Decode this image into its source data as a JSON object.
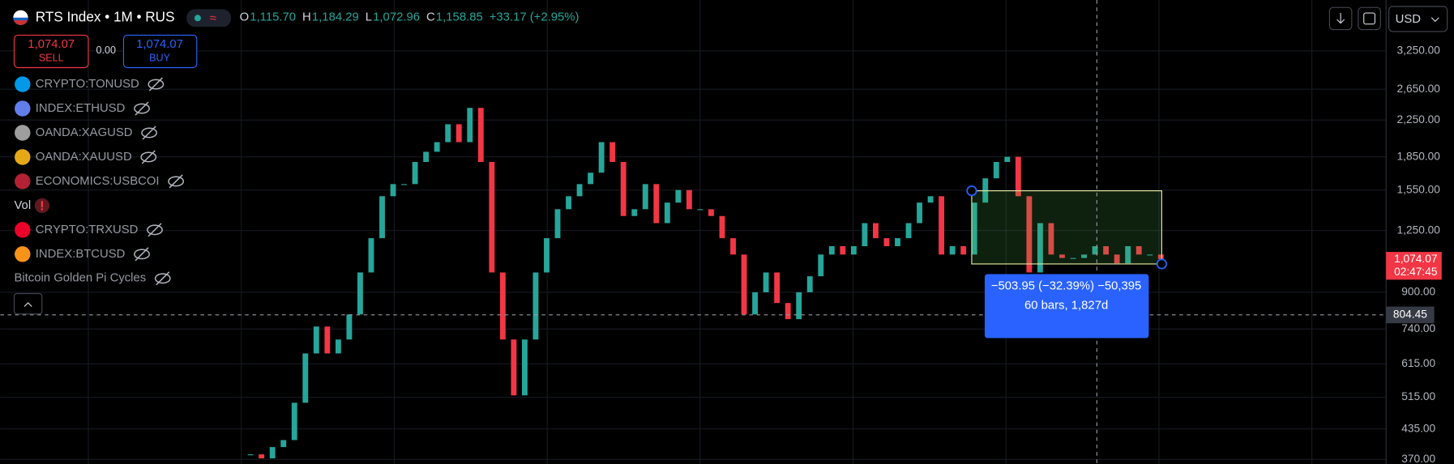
{
  "header": {
    "symbol": "RTS Index • 1M • RUS",
    "ohlc": [
      {
        "label": "O",
        "value": "1,115.70"
      },
      {
        "label": "H",
        "value": "1,184.29"
      },
      {
        "label": "L",
        "value": "1,072.96"
      },
      {
        "label": "C",
        "value": "1,158.85"
      }
    ],
    "change": "+33.17 (+2.95%)"
  },
  "trade": {
    "sell_price": "1,074.07",
    "sell": "SELL",
    "spread": "0.00",
    "buy_price": "1,074.07",
    "buy": "BUY"
  },
  "indicators": [
    "CRYPTO:TONUSD",
    "INDEX:ETHUSD",
    "OANDA:XAGUSD",
    "OANDA:XAUUSD",
    "ECONOMICS:USBCOI",
    "Vol",
    "CRYPTO:TRXUSD",
    "INDEX:BTCUSD",
    "Bitcoin Golden Pi Cycles"
  ],
  "currency": "USD",
  "chart_data": {
    "type": "candlestick",
    "values": [
      380,
      372,
      395,
      410,
      500,
      650,
      750,
      650,
      700,
      800,
      1000,
      1200,
      1500,
      1600,
      1600,
      1800,
      1900,
      2000,
      2200,
      2000,
      2400,
      1800,
      1000,
      700,
      520,
      700,
      1000,
      1200,
      1400,
      1500,
      1600,
      1700,
      2000,
      1800,
      1350,
      1400,
      1600,
      1300,
      1450,
      1550,
      1400,
      1400,
      1350,
      1200,
      1100,
      800,
      900,
      1000,
      850,
      780,
      900,
      980,
      1100,
      1150,
      1100,
      1150,
      1300,
      1200,
      1150,
      1200,
      1300,
      1450,
      1500,
      1100,
      1150,
      1100,
      1450,
      1650,
      1800,
      1850,
      1500,
      1000,
      1300,
      1100,
      1080,
      1080,
      1100,
      1150,
      1100,
      1050,
      1150,
      1100,
      1100,
      1074
    ],
    "ylim": [
      361,
      4260
    ],
    "log": true,
    "yticks": [
      {
        "value": 3250,
        "label": "3,250.00"
      },
      {
        "value": 2650,
        "label": "2,650.00"
      },
      {
        "value": 2250,
        "label": "2,250.00"
      },
      {
        "value": 1850,
        "label": "1,850.00"
      },
      {
        "value": 1550,
        "label": "1,550.00"
      },
      {
        "value": 1250,
        "label": "1,250.00"
      },
      {
        "value": 900,
        "label": "900.00"
      },
      {
        "value": 740,
        "label": "740.00"
      },
      {
        "value": 615,
        "label": "615.00"
      },
      {
        "value": 515,
        "label": "515.00"
      },
      {
        "value": 435,
        "label": "435.00"
      },
      {
        "value": 370,
        "label": "370.00"
      }
    ],
    "up_color": "#26a69a",
    "down_color": "#f23645",
    "grid": true
  },
  "price_label": {
    "value": "1,074.07",
    "countdown": "02:47:45"
  },
  "crosshair_label": "804.45",
  "measure": {
    "line1": "−503.95 (−32.39%) −50,395",
    "line2": "60 bars, 1,827d"
  }
}
